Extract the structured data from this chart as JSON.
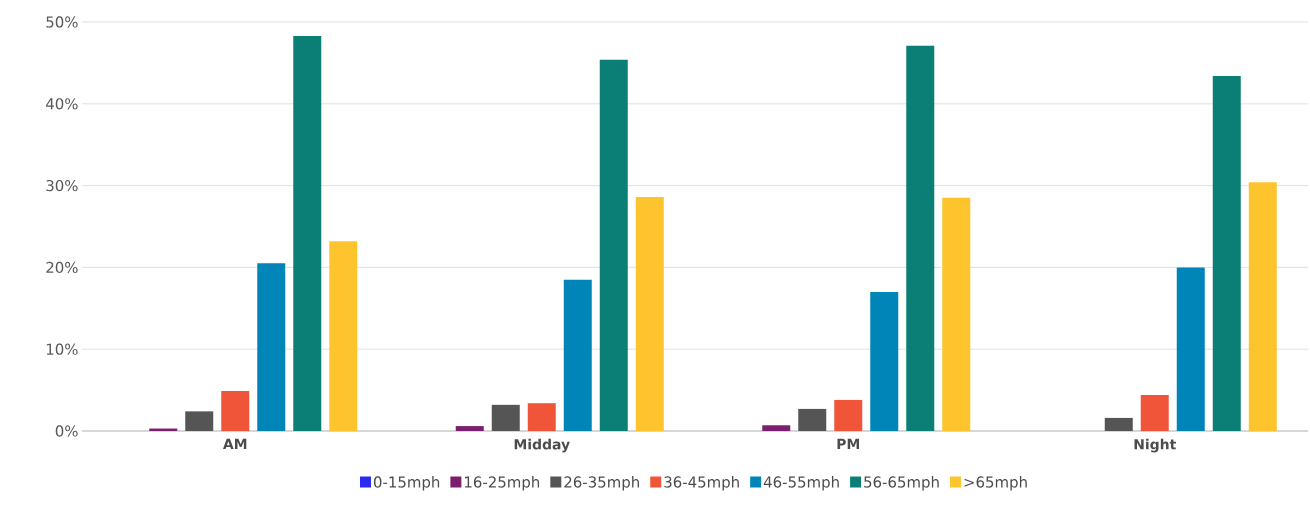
{
  "chart_data": {
    "type": "bar",
    "categories": [
      "AM",
      "Midday",
      "PM",
      "Night"
    ],
    "series": [
      {
        "name": "0-15mph",
        "color": "#2a2af0",
        "values": [
          0,
          0,
          0,
          0
        ]
      },
      {
        "name": "16-25mph",
        "color": "#7a1e6e",
        "values": [
          0.3,
          0.6,
          0.7,
          0
        ]
      },
      {
        "name": "26-35mph",
        "color": "#555555",
        "values": [
          2.4,
          3.2,
          2.7,
          1.6
        ]
      },
      {
        "name": "36-45mph",
        "color": "#f0553a",
        "values": [
          4.9,
          3.4,
          3.8,
          4.4
        ]
      },
      {
        "name": "46-55mph",
        "color": "#0085b8",
        "values": [
          20.5,
          18.5,
          17.0,
          20.0
        ]
      },
      {
        "name": "56-65mph",
        "color": "#0b7e76",
        "values": [
          48.3,
          45.4,
          47.1,
          43.4
        ]
      },
      {
        "name": ">65mph",
        "color": "#fdc42d",
        "values": [
          23.2,
          28.6,
          28.5,
          30.4
        ]
      }
    ],
    "ylim": [
      0,
      50
    ],
    "yticks": [
      {
        "value": 0,
        "label": "0%"
      },
      {
        "value": 10,
        "label": "10%"
      },
      {
        "value": 20,
        "label": "20%"
      },
      {
        "value": 30,
        "label": "30%"
      },
      {
        "value": 40,
        "label": "40%"
      },
      {
        "value": 50,
        "label": "50%"
      }
    ],
    "grid": "y",
    "legend": "bottom"
  }
}
